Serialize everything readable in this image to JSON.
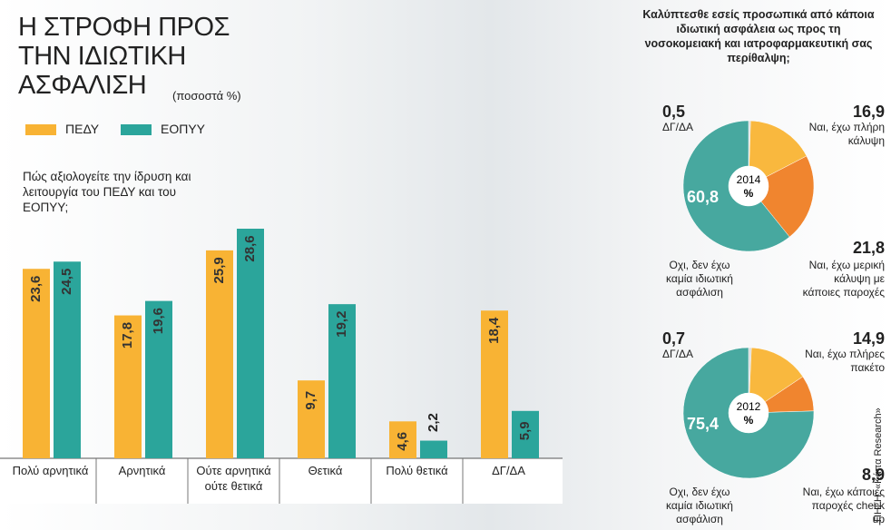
{
  "title": "Η ΣΤΡΟΦΗ ΠΡΟΣ ΤΗΝ ΙΔΙΩΤΙΚΗ ΑΣΦΑΛΙΣΗ",
  "subtitle": "(ποσοστά %)",
  "source": "ΠΗΓΗ: «Κάπα Research»",
  "pie_question": "Καλύπτεσθε εσείς προσωπικά από κάποια ιδιωτική ασφάλεια ως προς τη νοσοκομειακή και ιατροφαρμακευτική σας περίθαλψη;",
  "chart_data": [
    {
      "type": "bar",
      "annotation": "Πώς αξιολογείτε την ίδρυση και λειτουργία του ΠΕΔΥ και του ΕΟΠΥΥ;",
      "categories": [
        "Πολύ αρνητικά",
        "Αρνητικά",
        "Ούτε αρνητικά ούτε θετικά",
        "Θετικά",
        "Πολύ θετικά",
        "ΔΓ/ΔΑ"
      ],
      "series": [
        {
          "name": "ΠΕΔΥ",
          "color": "#f8b334",
          "values": [
            23.6,
            17.8,
            25.9,
            9.7,
            4.6,
            18.4
          ],
          "value_labels": [
            "23,6",
            "17,8",
            "25,9",
            "9,7",
            "4,6",
            "18,4"
          ]
        },
        {
          "name": "ΕΟΠΥΥ",
          "color": "#2ba59b",
          "values": [
            24.5,
            19.6,
            28.6,
            19.2,
            2.2,
            5.9
          ],
          "value_labels": [
            "24,5",
            "19,6",
            "28,6",
            "19,2",
            "2,2",
            "5,9"
          ]
        }
      ]
    },
    {
      "type": "pie",
      "center_label": "2014",
      "center_unit": "%",
      "categories": [
        "ΔΓ/ΔΑ",
        "Ναι, έχω πλήρη κάλυψη",
        "Ναι, έχω μερική κάλυψη με κάποιες παροχές",
        "Οχι, δεν έχω καμία ιδιωτική ασφάλιση"
      ],
      "values": [
        0.5,
        16.9,
        21.8,
        60.8
      ],
      "value_labels": [
        "0,5",
        "16,9",
        "21,8",
        "60,8"
      ],
      "colors": [
        "#d9d9d9",
        "#f9b83e",
        "#f0852f",
        "#47a89f"
      ]
    },
    {
      "type": "pie",
      "center_label": "2012",
      "center_unit": "%",
      "categories": [
        "ΔΓ/ΔΑ",
        "Ναι, έχω πλήρες πακέτο",
        "Ναι, έχω κάποιες παροχές check up",
        "Οχι, δεν έχω καμία ιδιωτική ασφάλιση"
      ],
      "values": [
        0.7,
        14.9,
        8.9,
        75.4
      ],
      "value_labels": [
        "0,7",
        "14,9",
        "8,9",
        "75,4"
      ],
      "colors": [
        "#d9d9d9",
        "#f9b83e",
        "#f0852f",
        "#47a89f"
      ]
    }
  ]
}
